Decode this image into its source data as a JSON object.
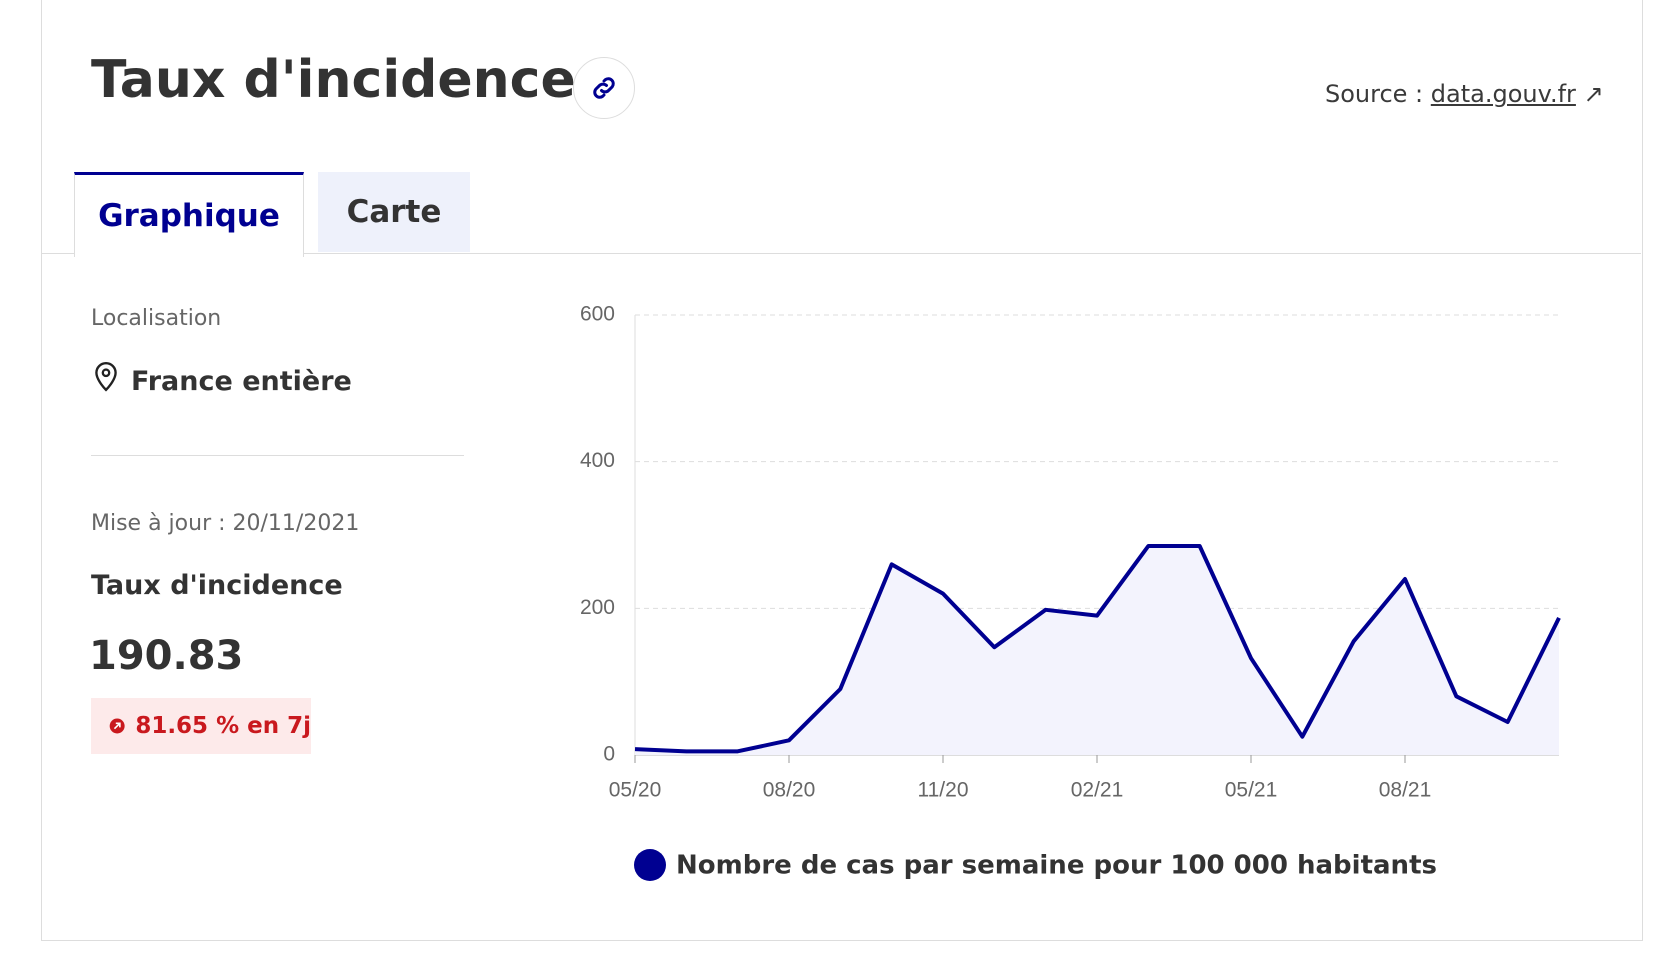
{
  "header": {
    "title": "Taux d'incidence",
    "source_label": "Source :",
    "source_link": "data.gouv.fr"
  },
  "tabs": [
    "Graphique",
    "Carte"
  ],
  "sidebar": {
    "location_label": "Localisation",
    "location": "France entière",
    "updated": "Mise à jour : 20/11/2021",
    "indicator": "Taux d'incidence",
    "value": "190.83",
    "change": "81.65 % en 7j"
  },
  "chart_data": {
    "type": "line",
    "x": [
      "05/20",
      "06/20",
      "07/20",
      "08/20",
      "09/20",
      "10/20",
      "11/20",
      "12/20",
      "01/21",
      "02/21",
      "03/21",
      "04/21",
      "05/21",
      "06/21",
      "07/21",
      "08/21",
      "09/21",
      "10/21",
      "11/21"
    ],
    "xticks": [
      "05/20",
      "08/20",
      "11/20",
      "02/21",
      "05/21",
      "08/21"
    ],
    "series": [
      {
        "name": "Nombre de cas par semaine pour 100 000 habitants",
        "color": "#000091",
        "values": [
          8,
          5,
          5,
          20,
          90,
          260,
          220,
          147,
          198,
          190,
          285,
          285,
          132,
          25,
          155,
          240,
          80,
          45,
          187
        ]
      }
    ],
    "area_color": "#f3f3fd",
    "ylim": [
      0,
      600
    ],
    "yticks": [
      0,
      200,
      400,
      600
    ],
    "grid": true
  }
}
